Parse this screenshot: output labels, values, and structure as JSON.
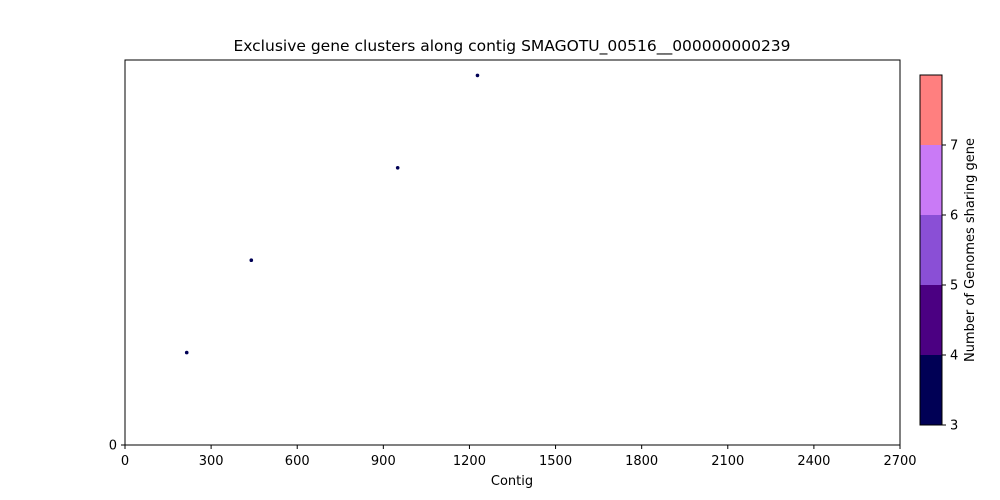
{
  "chart_data": {
    "type": "scatter",
    "title": "Exclusive gene clusters along contig SMAGOTU_00516__000000000239",
    "xlabel": "Contig",
    "ylabel": "",
    "xlim": [
      0,
      2700
    ],
    "ylim": [
      0,
      5
    ],
    "xticks": [
      "0",
      "300",
      "600",
      "900",
      "1200",
      "1500",
      "1800",
      "2100",
      "2400",
      "2700"
    ],
    "yticks": [
      "0"
    ],
    "points": [
      {
        "x": 215,
        "y": 1.2,
        "genomes": 3,
        "color": "#000055"
      },
      {
        "x": 440,
        "y": 2.4,
        "genomes": 3,
        "color": "#000055"
      },
      {
        "x": 950,
        "y": 3.6,
        "genomes": 3,
        "color": "#000055"
      },
      {
        "x": 1228,
        "y": 4.8,
        "genomes": 3,
        "color": "#000055"
      }
    ],
    "colorbar": {
      "label": "Number of Genomes sharing gene",
      "ticks": [
        "3",
        "4",
        "5",
        "6",
        "7"
      ],
      "bands": [
        {
          "from": 3,
          "to": 4,
          "color": "#000055"
        },
        {
          "from": 4,
          "to": 5,
          "color": "#4b0082"
        },
        {
          "from": 5,
          "to": 6,
          "color": "#8a4fd6"
        },
        {
          "from": 6,
          "to": 7,
          "color": "#c97af6"
        },
        {
          "from": 7,
          "to": 8,
          "color": "#ff7f7f"
        }
      ]
    },
    "grid": false,
    "legend": "none"
  }
}
